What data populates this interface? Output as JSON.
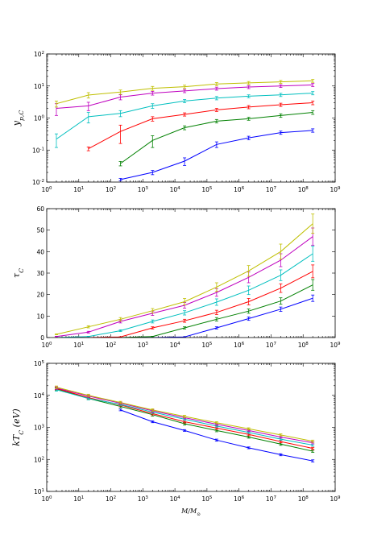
{
  "colors": {
    "blue": "#0000ff",
    "green": "#008000",
    "red": "#ff0000",
    "cyan": "#00bfbf",
    "magenta": "#bf00bf",
    "yellow": "#bfbf00"
  },
  "chart_data": [
    {
      "type": "line",
      "ylabel": "y_p,C",
      "xlabel": "",
      "xscale": "log",
      "yscale": "log",
      "xlim": [
        1,
        1000000000
      ],
      "ylim": [
        0.01,
        100
      ],
      "x_tick_labels": [
        "10^0",
        "10^1",
        "10^2",
        "10^3",
        "10^4",
        "10^5",
        "10^6",
        "10^7",
        "10^8",
        "10^9"
      ],
      "y_tick_labels": [
        "10^-2",
        "10^-1",
        "10^0",
        "10^1",
        "10^2"
      ],
      "series": [
        {
          "color": "blue",
          "x": [
            200,
            2000,
            20000,
            200000,
            2000000,
            20000000,
            200000000
          ],
          "y": [
            0.012,
            0.02,
            0.045,
            0.15,
            0.24,
            0.35,
            0.41
          ],
          "err": [
            0.001,
            0.003,
            0.012,
            0.03,
            0.03,
            0.04,
            0.05
          ]
        },
        {
          "color": "green",
          "x": [
            200,
            2000,
            20000,
            200000,
            2000000,
            20000000,
            200000000
          ],
          "y": [
            0.038,
            0.2,
            0.5,
            0.8,
            0.95,
            1.2,
            1.5
          ],
          "err": [
            0.006,
            0.08,
            0.07,
            0.1,
            0.1,
            0.15,
            0.2
          ]
        },
        {
          "color": "red",
          "x": [
            20,
            200,
            2000,
            20000,
            200000,
            2000000,
            20000000,
            200000000
          ],
          "y": [
            0.11,
            0.38,
            0.95,
            1.3,
            1.8,
            2.2,
            2.6,
            3.0
          ],
          "err": [
            0.015,
            0.22,
            0.15,
            0.15,
            0.2,
            0.25,
            0.3,
            0.4
          ]
        },
        {
          "color": "cyan",
          "x": [
            2,
            20,
            200,
            2000,
            20000,
            200000,
            2000000,
            20000000,
            200000000
          ],
          "y": [
            0.22,
            1.1,
            1.4,
            2.4,
            3.4,
            4.2,
            4.8,
            5.3,
            6.0
          ],
          "err": [
            0.1,
            0.4,
            0.3,
            0.4,
            0.4,
            0.5,
            0.5,
            0.6,
            0.7
          ]
        },
        {
          "color": "magenta",
          "x": [
            2,
            20,
            200,
            2000,
            20000,
            200000,
            2000000,
            20000000,
            200000000
          ],
          "y": [
            2.0,
            2.4,
            4.5,
            6.0,
            7.0,
            8.3,
            9.3,
            10.0,
            10.8
          ],
          "err": [
            0.8,
            0.7,
            0.8,
            0.8,
            0.8,
            0.9,
            1.0,
            1.0,
            1.2
          ]
        },
        {
          "color": "yellow",
          "x": [
            2,
            20,
            200,
            2000,
            20000,
            200000,
            2000000,
            20000000,
            200000000
          ],
          "y": [
            2.8,
            5.2,
            6.5,
            8.5,
            9.5,
            11.5,
            12.5,
            13.5,
            14.5
          ],
          "err": [
            0.6,
            1.0,
            1.0,
            1.2,
            1.1,
            1.3,
            1.3,
            1.4,
            1.5
          ]
        }
      ]
    },
    {
      "type": "line",
      "ylabel": "τ_C",
      "xlabel": "",
      "xscale": "log",
      "yscale": "linear",
      "xlim": [
        1,
        1000000000
      ],
      "ylim": [
        0,
        60
      ],
      "x_tick_labels": [
        "10^0",
        "10^1",
        "10^2",
        "10^3",
        "10^4",
        "10^5",
        "10^6",
        "10^7",
        "10^8",
        "10^9"
      ],
      "y_tick_labels": [
        "0",
        "10",
        "20",
        "30",
        "40",
        "50",
        "60"
      ],
      "series": [
        {
          "color": "blue",
          "x": [
            2,
            20,
            200,
            2000,
            20000,
            200000,
            2000000,
            20000000,
            200000000
          ],
          "y": [
            0,
            0,
            0,
            0,
            0.3,
            4.5,
            8.8,
            13.2,
            18.3
          ],
          "err": [
            0,
            0,
            0,
            0,
            0.1,
            0.5,
            0.8,
            1.0,
            1.5
          ]
        },
        {
          "color": "green",
          "x": [
            2,
            20,
            200,
            2000,
            20000,
            200000,
            2000000,
            20000000,
            200000000
          ],
          "y": [
            0,
            0,
            0,
            0.5,
            4.5,
            8.5,
            12.3,
            17.0,
            24.5
          ],
          "err": [
            0,
            0,
            0,
            0.1,
            0.5,
            0.8,
            1.0,
            1.5,
            2.5
          ]
        },
        {
          "color": "red",
          "x": [
            2,
            20,
            200,
            2000,
            20000,
            200000,
            2000000,
            20000000,
            200000000
          ],
          "y": [
            0,
            0,
            0.3,
            4.5,
            7.8,
            11.7,
            16.7,
            23.0,
            30.8
          ],
          "err": [
            0,
            0,
            0.1,
            0.5,
            0.7,
            1.0,
            1.5,
            2.0,
            3.0
          ]
        },
        {
          "color": "cyan",
          "x": [
            2,
            20,
            200,
            2000,
            20000,
            200000,
            2000000,
            20000000,
            200000000
          ],
          "y": [
            0,
            0.5,
            3.2,
            7.5,
            11.5,
            16.5,
            22.0,
            29.0,
            39.0
          ],
          "err": [
            0,
            0.1,
            0.4,
            0.7,
            1.0,
            1.5,
            2.0,
            2.5,
            3.5
          ]
        },
        {
          "color": "magenta",
          "x": [
            2,
            20,
            200,
            2000,
            20000,
            200000,
            2000000,
            20000000,
            200000000
          ],
          "y": [
            0.5,
            2.5,
            7.5,
            11.3,
            15.0,
            21.0,
            28.0,
            36.0,
            47.0
          ],
          "err": [
            0.1,
            0.4,
            0.7,
            1.0,
            1.3,
            1.8,
            2.5,
            3.0,
            4.0
          ]
        },
        {
          "color": "yellow",
          "x": [
            2,
            20,
            200,
            2000,
            20000,
            200000,
            2000000,
            20000000,
            200000000
          ],
          "y": [
            1.5,
            5.0,
            8.5,
            12.5,
            16.7,
            23.5,
            31.0,
            40.0,
            53.0
          ],
          "err": [
            0.2,
            0.5,
            0.8,
            1.0,
            1.5,
            2.0,
            2.5,
            3.5,
            4.5
          ]
        }
      ]
    },
    {
      "type": "line",
      "ylabel": "kT_C (eV)",
      "xlabel": "M/M_⊙",
      "xscale": "log",
      "yscale": "log",
      "xlim": [
        1,
        1000000000
      ],
      "ylim": [
        10,
        100000
      ],
      "x_tick_labels": [
        "10^0",
        "10^1",
        "10^2",
        "10^3",
        "10^4",
        "10^5",
        "10^6",
        "10^7",
        "10^8",
        "10^9"
      ],
      "y_tick_labels": [
        "10^1",
        "10^2",
        "10^3",
        "10^4",
        "10^5"
      ],
      "series": [
        {
          "color": "blue",
          "x": [
            200,
            2000,
            20000,
            200000,
            2000000,
            20000000,
            200000000
          ],
          "y": [
            3500,
            1500,
            800,
            400,
            230,
            140,
            90
          ],
          "err": [
            200,
            100,
            50,
            30,
            15,
            10,
            7
          ]
        },
        {
          "color": "green",
          "x": [
            2,
            20,
            200,
            2000,
            20000,
            200000,
            2000000,
            20000000,
            200000000
          ],
          "y": [
            16000,
            8000,
            4500,
            2500,
            1300,
            800,
            500,
            300,
            180
          ],
          "err": [
            1500,
            700,
            400,
            250,
            120,
            70,
            40,
            25,
            15
          ]
        },
        {
          "color": "red",
          "x": [
            2,
            20,
            200,
            2000,
            20000,
            200000,
            2000000,
            20000000,
            200000000
          ],
          "y": [
            16500,
            8500,
            5000,
            2700,
            1500,
            950,
            600,
            360,
            220
          ],
          "err": [
            1500,
            700,
            400,
            250,
            130,
            80,
            50,
            30,
            18
          ]
        },
        {
          "color": "cyan",
          "x": [
            2,
            20,
            200,
            2000,
            20000,
            200000,
            2000000,
            20000000,
            200000000
          ],
          "y": [
            15000,
            8000,
            5200,
            3000,
            1800,
            1100,
            700,
            430,
            280
          ],
          "err": [
            1500,
            700,
            400,
            250,
            150,
            90,
            55,
            35,
            22
          ]
        },
        {
          "color": "magenta",
          "x": [
            2,
            20,
            200,
            2000,
            20000,
            200000,
            2000000,
            20000000,
            200000000
          ],
          "y": [
            17000,
            9500,
            5700,
            3300,
            2000,
            1250,
            800,
            500,
            330
          ],
          "err": [
            1500,
            800,
            450,
            280,
            160,
            100,
            60,
            40,
            25
          ]
        },
        {
          "color": "yellow",
          "x": [
            2,
            20,
            200,
            2000,
            20000,
            200000,
            2000000,
            20000000,
            200000000
          ],
          "y": [
            18000,
            10000,
            6000,
            3500,
            2200,
            1400,
            900,
            580,
            370
          ],
          "err": [
            1600,
            850,
            500,
            300,
            180,
            110,
            70,
            45,
            30
          ]
        }
      ]
    }
  ]
}
